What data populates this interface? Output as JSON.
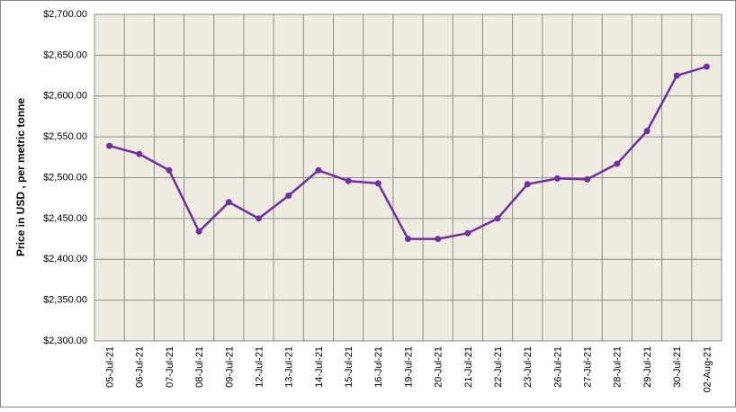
{
  "chart_data": {
    "type": "line",
    "y_label": "Price in USD , per metric tonne",
    "categories": [
      "05-Jul-21",
      "06-Jul-21",
      "07-Jul-21",
      "08-Jul-21",
      "09-Jul-21",
      "12-Jul-21",
      "13-Jul-21",
      "14-Jul-21",
      "15-Jul-21",
      "16-Jul-21",
      "19-Jul-21",
      "20-Jul-21",
      "21-Jul-21",
      "22-Jul-21",
      "23-Jul-21",
      "26-Jul-21",
      "27-Jul-21",
      "28-Jul-21",
      "29-Jul-21",
      "30-Jul-21",
      "02-Aug-21"
    ],
    "values": [
      2539,
      2529,
      2509,
      2434,
      2470,
      2450,
      2478,
      2509,
      2496,
      2493,
      2425,
      2425,
      2432,
      2450,
      2492,
      2499,
      2498,
      2517,
      2557,
      2625,
      2636
    ],
    "color": "#7030a0",
    "ylim": [
      2300,
      2700
    ],
    "yticks": [
      {
        "value": 2300,
        "label": "$2,300.00"
      },
      {
        "value": 2350,
        "label": "$2,350.00"
      },
      {
        "value": 2400,
        "label": "$2,400.00"
      },
      {
        "value": 2450,
        "label": "$2,450.00"
      },
      {
        "value": 2500,
        "label": "$2,500.00"
      },
      {
        "value": 2550,
        "label": "$2,550.00"
      },
      {
        "value": 2600,
        "label": "$2,600.00"
      },
      {
        "value": 2650,
        "label": "$2,650.00"
      },
      {
        "value": 2700,
        "label": "$2,700.00"
      }
    ],
    "grid": true
  }
}
